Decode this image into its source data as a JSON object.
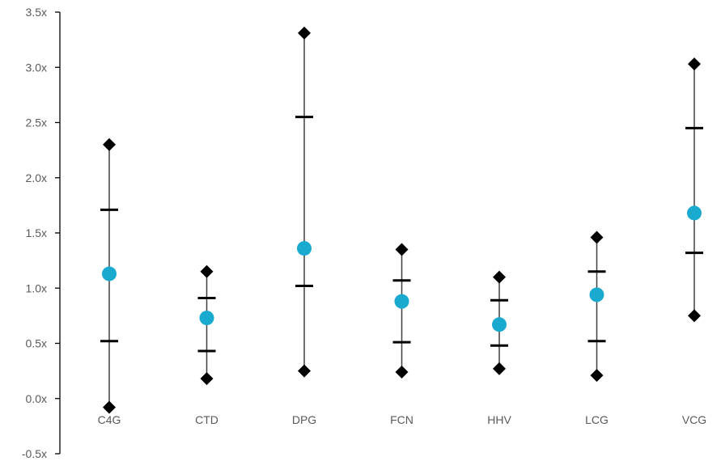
{
  "chart_data": {
    "type": "scatter",
    "title": "",
    "xlabel": "",
    "ylabel": "",
    "categories": [
      "C4G",
      "CTD",
      "DPG",
      "FCN",
      "HHV",
      "LCG",
      "VCG"
    ],
    "ylim": [
      -0.5,
      3.5
    ],
    "yticks": [
      -0.5,
      0.0,
      0.5,
      1.0,
      1.5,
      2.0,
      2.5,
      3.0,
      3.5
    ],
    "ytick_labels": [
      "-0.5x",
      "0.0x",
      "0.5x",
      "1.0x",
      "1.5x",
      "2.0x",
      "2.5x",
      "3.0x",
      "3.5x"
    ],
    "grid": false,
    "legend": "none",
    "series": [
      {
        "key": "max",
        "marker": "diamond",
        "color": "#000000",
        "values": [
          2.3,
          1.15,
          3.31,
          1.35,
          1.1,
          1.46,
          3.03
        ]
      },
      {
        "key": "upper_quartile",
        "marker": "dash",
        "color": "#000000",
        "values": [
          1.71,
          0.91,
          2.55,
          1.07,
          0.89,
          1.15,
          2.45
        ]
      },
      {
        "key": "median",
        "marker": "circle",
        "color": "#1AAACF",
        "values": [
          1.13,
          0.73,
          1.36,
          0.88,
          0.67,
          0.94,
          1.68
        ]
      },
      {
        "key": "lower_quartile",
        "marker": "dash",
        "color": "#000000",
        "values": [
          0.52,
          0.43,
          1.02,
          0.51,
          0.48,
          0.52,
          1.32
        ]
      },
      {
        "key": "min",
        "marker": "diamond",
        "color": "#000000",
        "values": [
          -0.08,
          0.18,
          0.25,
          0.24,
          0.27,
          0.21,
          0.75
        ]
      }
    ],
    "colors": {
      "range_line": "#404040",
      "axis": "#000000",
      "tick_text": "#595959"
    }
  }
}
